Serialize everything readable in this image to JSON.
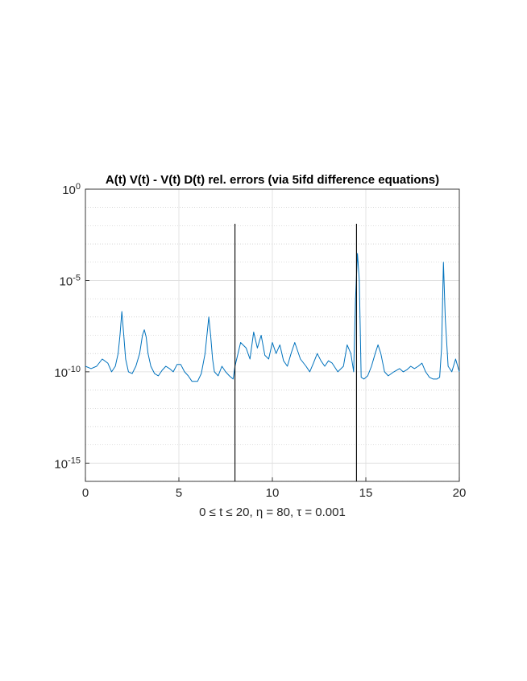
{
  "chart_data": {
    "type": "line",
    "title": "A(t) V(t) - V(t) D(t) rel. errors (via 5ifd difference equations)",
    "xlabel": "0 ≤ t ≤ 20,  η = 80,  τ = 0.001",
    "ylabel": "",
    "yscale": "log",
    "xlim": [
      0,
      20
    ],
    "ylim": [
      1e-16,
      1
    ],
    "grid": true,
    "legend": "none",
    "x_ticks": [
      {
        "value": 0,
        "label": "0"
      },
      {
        "value": 5,
        "label": "5"
      },
      {
        "value": 10,
        "label": "10"
      },
      {
        "value": 15,
        "label": "15"
      },
      {
        "value": 20,
        "label": "20"
      }
    ],
    "y_ticks": [
      {
        "value": 1,
        "base": "10",
        "exp": "0"
      },
      {
        "value": 1e-05,
        "base": "10",
        "exp": "-5"
      },
      {
        "value": 1e-10,
        "base": "10",
        "exp": "-10"
      },
      {
        "value": 1e-15,
        "base": "10",
        "exp": "-15"
      }
    ],
    "series": [
      {
        "color": "#0072bd",
        "x": [
          0.0,
          0.3,
          0.6,
          0.9,
          1.2,
          1.4,
          1.6,
          1.75,
          1.85,
          1.95,
          2.05,
          2.15,
          2.3,
          2.5,
          2.7,
          2.9,
          3.05,
          3.15,
          3.25,
          3.35,
          3.5,
          3.7,
          3.9,
          4.1,
          4.3,
          4.5,
          4.7,
          4.9,
          5.1,
          5.3,
          5.5,
          5.7,
          6.0,
          6.2,
          6.4,
          6.5,
          6.6,
          6.7,
          6.8,
          6.9,
          7.1,
          7.3,
          7.5,
          7.7,
          7.9,
          8.0,
          8.3,
          8.6,
          8.8,
          9.0,
          9.2,
          9.4,
          9.6,
          9.8,
          10.0,
          10.2,
          10.4,
          10.6,
          10.8,
          11.0,
          11.2,
          11.5,
          11.8,
          12.0,
          12.2,
          12.4,
          12.6,
          12.8,
          13.0,
          13.2,
          13.5,
          13.8,
          14.0,
          14.2,
          14.35,
          14.45,
          14.55,
          14.65,
          14.75,
          14.9,
          15.1,
          15.3,
          15.5,
          15.65,
          15.8,
          16.0,
          16.2,
          16.5,
          16.8,
          17.0,
          17.2,
          17.4,
          17.6,
          17.8,
          18.0,
          18.2,
          18.4,
          18.6,
          18.8,
          18.95,
          19.05,
          19.15,
          19.25,
          19.4,
          19.6,
          19.8,
          20.0
        ],
        "y": [
          2e-10,
          1.5e-10,
          2e-10,
          5e-10,
          3e-10,
          1e-10,
          2e-10,
          1e-09,
          1e-08,
          2e-07,
          1e-08,
          5e-10,
          1e-10,
          8e-11,
          2e-10,
          1e-09,
          1e-08,
          2e-08,
          8e-09,
          1e-09,
          2e-10,
          8e-11,
          6e-11,
          1.2e-10,
          2e-10,
          1.5e-10,
          1e-10,
          2.5e-10,
          2.5e-10,
          1e-10,
          6e-11,
          3e-11,
          3e-11,
          8e-11,
          1e-09,
          1e-08,
          1e-07,
          1e-08,
          5e-10,
          1e-10,
          6e-11,
          2e-10,
          1e-10,
          6e-11,
          4e-11,
          2e-10,
          4e-09,
          2e-09,
          5e-10,
          1.5e-08,
          2e-09,
          1e-08,
          8e-10,
          5e-10,
          4e-09,
          1e-09,
          3e-09,
          4e-10,
          2e-10,
          1e-09,
          4e-09,
          5e-10,
          2e-10,
          1e-10,
          3e-10,
          1e-09,
          4e-10,
          2e-10,
          4e-10,
          3e-10,
          1e-10,
          2e-10,
          3e-09,
          1e-09,
          1e-10,
          1e-06,
          0.0003,
          1e-05,
          5e-11,
          4e-11,
          6e-11,
          2e-10,
          1e-09,
          3e-09,
          1e-09,
          1e-10,
          6e-11,
          1e-10,
          1.5e-10,
          1e-10,
          1.3e-10,
          2e-10,
          1.5e-10,
          2e-10,
          3e-10,
          1e-10,
          5e-11,
          4e-11,
          4e-11,
          5e-11,
          2e-09,
          0.0001,
          8e-08,
          2e-10,
          1e-10,
          5e-10,
          1e-10
        ]
      }
    ],
    "vertical_lines": [
      {
        "x": 8.0,
        "color": "#000000"
      },
      {
        "x": 14.5,
        "color": "#000000"
      }
    ]
  }
}
